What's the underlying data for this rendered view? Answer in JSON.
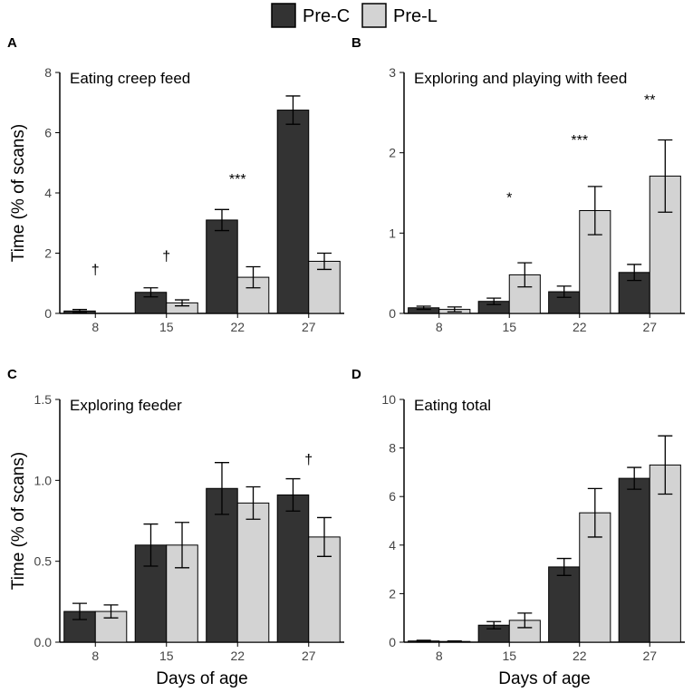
{
  "legend": {
    "items": [
      {
        "name": "Pre-C",
        "color": "#333333"
      },
      {
        "name": "Pre-L",
        "color": "#d3d3d3"
      }
    ]
  },
  "shared": {
    "ylabel": "Time (% of scans)",
    "xlabel": "Days of age"
  },
  "chart_data": [
    {
      "panel": "A",
      "type": "bar",
      "title": "Eating creep feed",
      "categories": [
        "8",
        "15",
        "22",
        "27"
      ],
      "ylim": [
        0,
        8
      ],
      "yticks": [
        "0",
        "2",
        "4",
        "6",
        "8"
      ],
      "ylabel": "Time (% of scans)",
      "xlabel": "",
      "series": [
        {
          "name": "Pre-C",
          "values": [
            0.08,
            0.7,
            3.1,
            6.75
          ],
          "err": [
            0.05,
            0.15,
            0.35,
            0.47
          ]
        },
        {
          "name": "Pre-L",
          "values": [
            0.0,
            0.35,
            1.2,
            1.73
          ],
          "err": [
            0.0,
            0.1,
            0.35,
            0.27
          ]
        }
      ],
      "annotations": [
        {
          "category": 0,
          "text": "†",
          "y": 1.3
        },
        {
          "category": 1,
          "text": "†",
          "y": 1.75
        },
        {
          "category": 2,
          "text": "***",
          "y": 4.3
        }
      ]
    },
    {
      "panel": "B",
      "type": "bar",
      "title": "Exploring and playing with feed",
      "categories": [
        "8",
        "15",
        "22",
        "27"
      ],
      "ylim": [
        0,
        3
      ],
      "yticks": [
        "0",
        "1",
        "2",
        "3"
      ],
      "ylabel": "",
      "xlabel": "",
      "series": [
        {
          "name": "Pre-C",
          "values": [
            0.07,
            0.15,
            0.27,
            0.51
          ],
          "err": [
            0.02,
            0.04,
            0.07,
            0.1
          ]
        },
        {
          "name": "Pre-L",
          "values": [
            0.05,
            0.48,
            1.28,
            1.71
          ],
          "err": [
            0.03,
            0.15,
            0.3,
            0.45
          ]
        }
      ],
      "annotations": [
        {
          "category": 1,
          "text": "*",
          "y": 1.38
        },
        {
          "category": 2,
          "text": "***",
          "y": 2.1
        },
        {
          "category": 3,
          "text": "**",
          "y": 2.6
        }
      ]
    },
    {
      "panel": "C",
      "type": "bar",
      "title": "Exploring feeder",
      "categories": [
        "8",
        "15",
        "22",
        "27"
      ],
      "ylim": [
        0,
        1.5
      ],
      "yticks": [
        "0.0",
        "0.5",
        "1.0",
        "1.5"
      ],
      "ylabel": "Time (% of scans)",
      "xlabel": "Days of age",
      "series": [
        {
          "name": "Pre-C",
          "values": [
            0.19,
            0.6,
            0.95,
            0.91
          ],
          "err": [
            0.05,
            0.13,
            0.16,
            0.1
          ]
        },
        {
          "name": "Pre-L",
          "values": [
            0.19,
            0.6,
            0.86,
            0.65
          ],
          "err": [
            0.04,
            0.14,
            0.1,
            0.12
          ]
        }
      ],
      "annotations": [
        {
          "category": 3,
          "text": "†",
          "y": 1.1
        }
      ]
    },
    {
      "panel": "D",
      "type": "bar",
      "title": "Eating total",
      "categories": [
        "8",
        "15",
        "22",
        "27"
      ],
      "ylim": [
        0,
        10
      ],
      "yticks": [
        "0",
        "2",
        "4",
        "6",
        "8",
        "10"
      ],
      "ylabel": "",
      "xlabel": "Days of age",
      "series": [
        {
          "name": "Pre-C",
          "values": [
            0.05,
            0.7,
            3.1,
            6.75
          ],
          "err": [
            0.03,
            0.15,
            0.35,
            0.45
          ]
        },
        {
          "name": "Pre-L",
          "values": [
            0.03,
            0.9,
            5.33,
            7.3
          ],
          "err": [
            0.02,
            0.3,
            1.0,
            1.2
          ]
        }
      ],
      "annotations": []
    }
  ]
}
